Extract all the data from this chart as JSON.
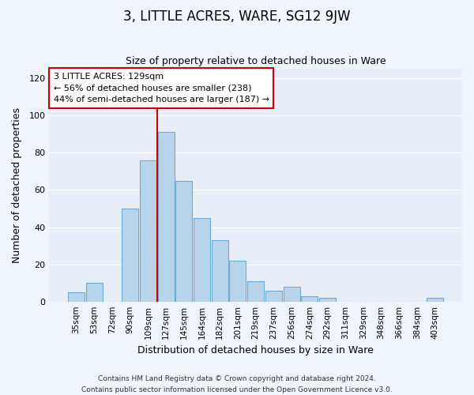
{
  "title": "3, LITTLE ACRES, WARE, SG12 9JW",
  "subtitle": "Size of property relative to detached houses in Ware",
  "xlabel": "Distribution of detached houses by size in Ware",
  "ylabel": "Number of detached properties",
  "footer_line1": "Contains HM Land Registry data © Crown copyright and database right 2024.",
  "footer_line2": "Contains public sector information licensed under the Open Government Licence v3.0.",
  "bin_labels": [
    "35sqm",
    "53sqm",
    "72sqm",
    "90sqm",
    "109sqm",
    "127sqm",
    "145sqm",
    "164sqm",
    "182sqm",
    "201sqm",
    "219sqm",
    "237sqm",
    "256sqm",
    "274sqm",
    "292sqm",
    "311sqm",
    "329sqm",
    "348sqm",
    "366sqm",
    "384sqm",
    "403sqm"
  ],
  "bar_values": [
    5,
    10,
    0,
    50,
    76,
    91,
    65,
    45,
    33,
    22,
    11,
    6,
    8,
    3,
    2,
    0,
    0,
    0,
    0,
    0,
    2
  ],
  "bar_color": "#b8d4ea",
  "bar_edge_color": "#6aaad4",
  "highlight_line_index": 5,
  "highlight_line_color": "#cc0000",
  "annotation_text": "3 LITTLE ACRES: 129sqm\n← 56% of detached houses are smaller (238)\n44% of semi-detached houses are larger (187) →",
  "annotation_box_facecolor": "#ffffff",
  "annotation_box_edgecolor": "#cc0000",
  "ylim": [
    0,
    125
  ],
  "yticks": [
    0,
    20,
    40,
    60,
    80,
    100,
    120
  ],
  "fig_background_color": "#f0f4fb",
  "plot_background_color": "#e8eef8",
  "grid_color": "#ffffff",
  "title_fontsize": 12,
  "subtitle_fontsize": 9,
  "ylabel_fontsize": 9,
  "xlabel_fontsize": 9,
  "tick_fontsize": 8,
  "xtick_fontsize": 7.5,
  "footer_fontsize": 6.5,
  "annotation_fontsize": 8
}
